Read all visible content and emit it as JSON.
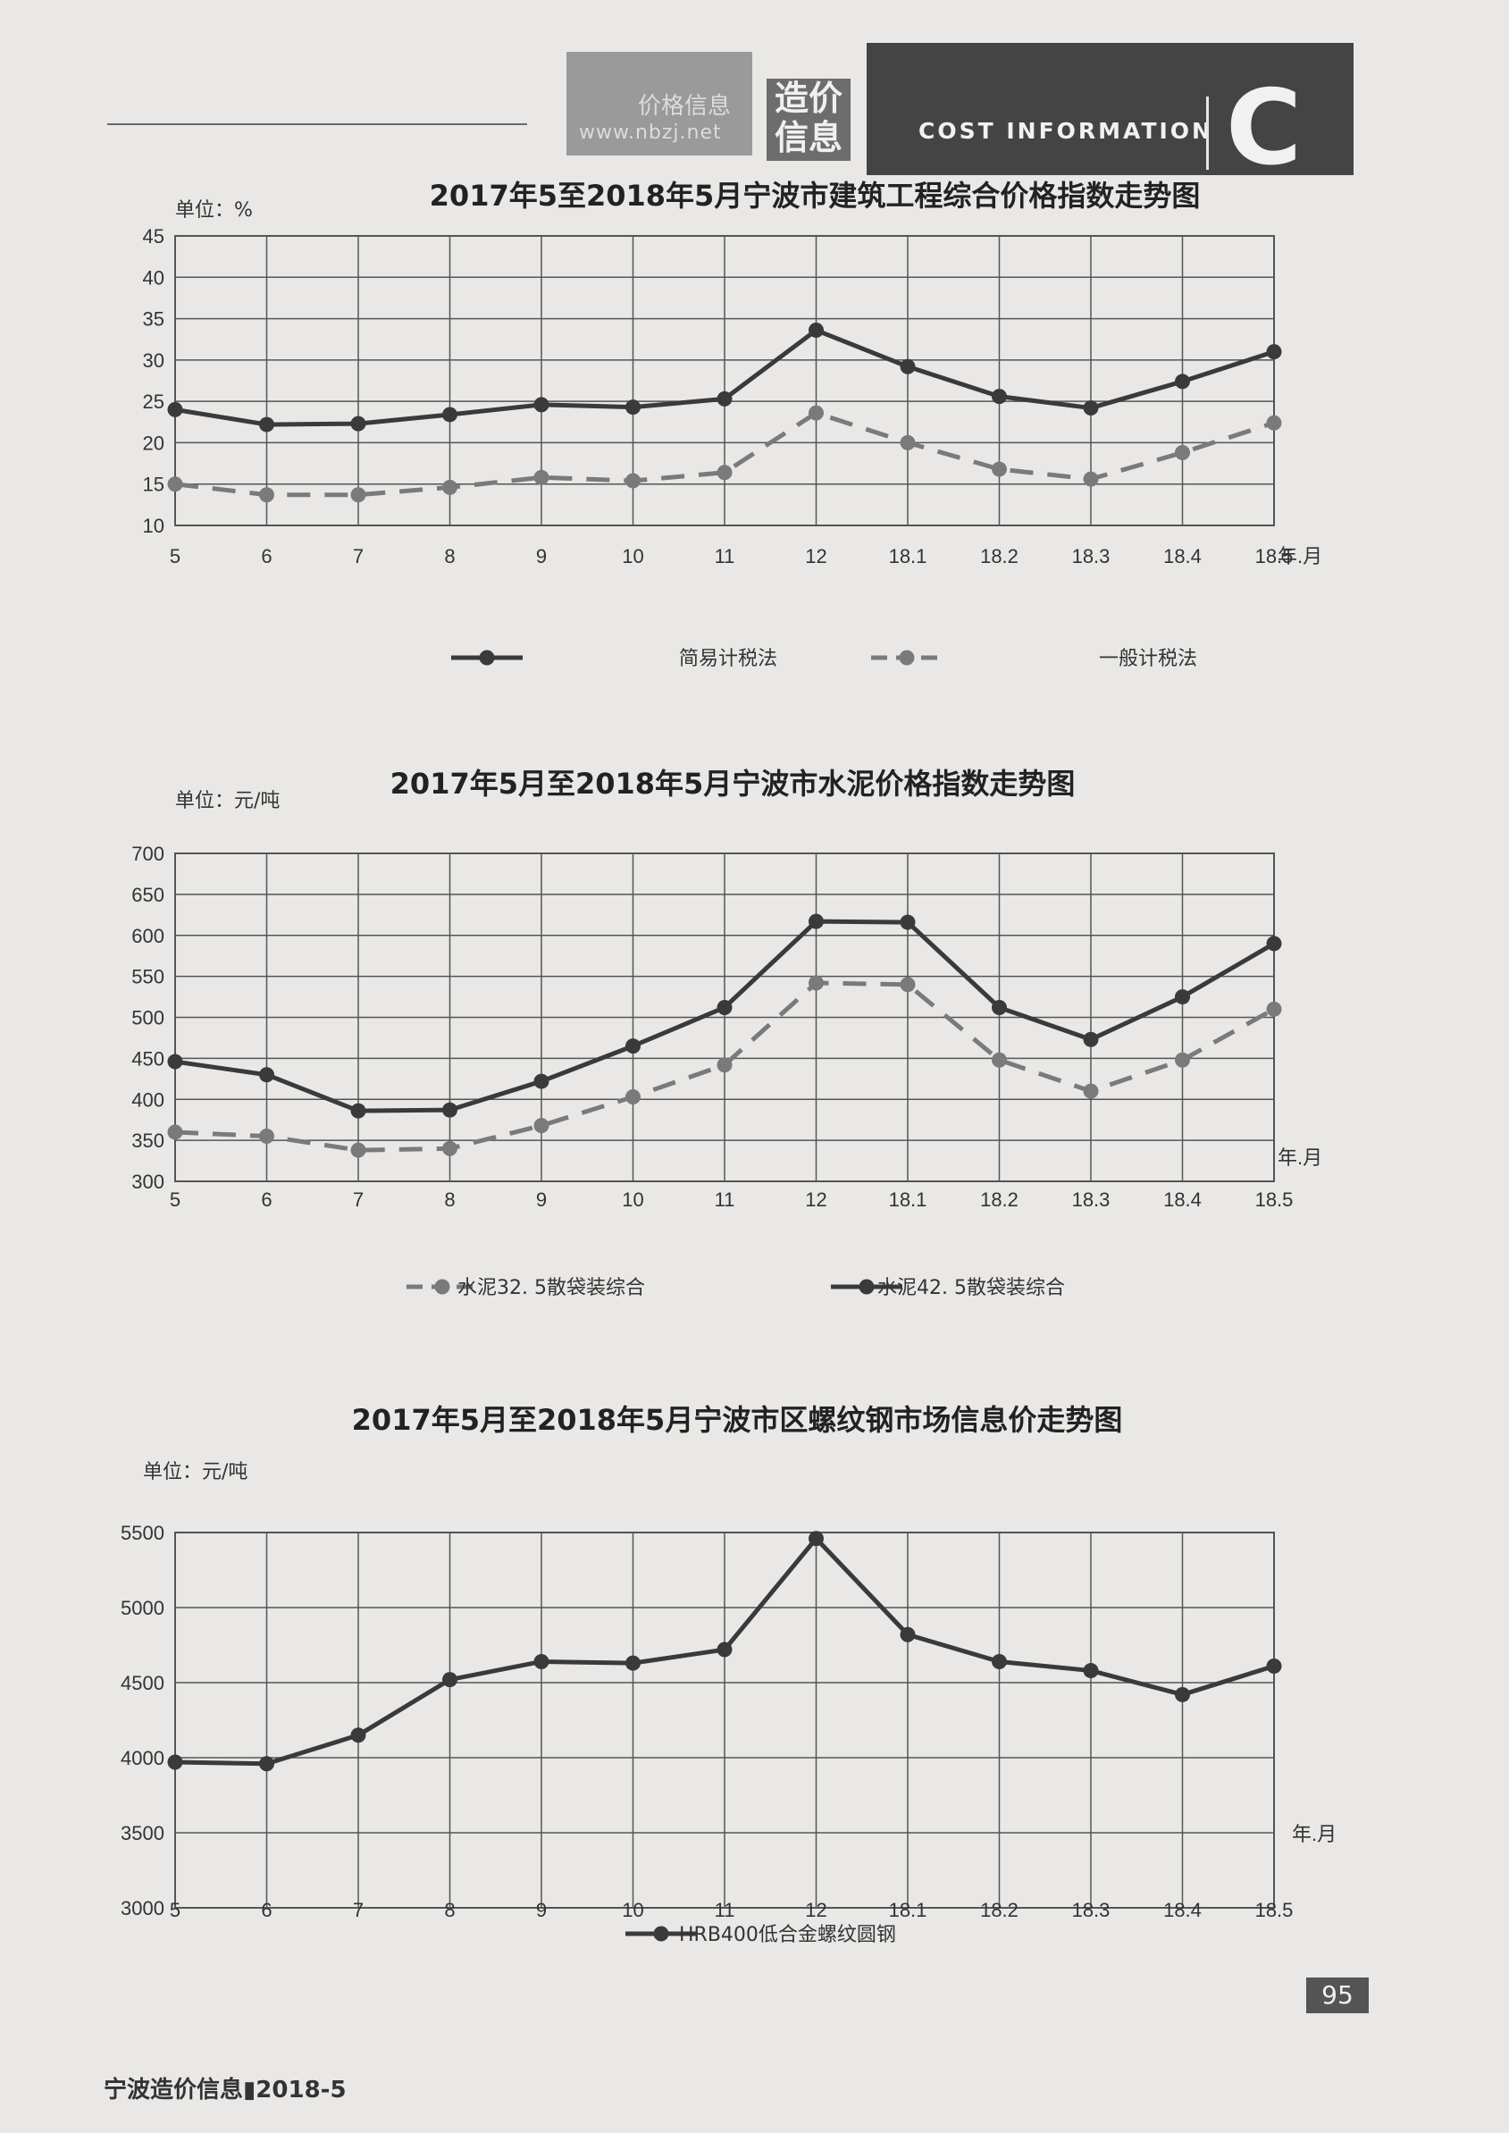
{
  "header": {
    "logo_line1": "价格信息",
    "logo_line2": "www.nbzj.net",
    "section_cn": "造价信息",
    "section_en": "COST INFORMATION",
    "section_letter": "C"
  },
  "footer": {
    "page_number": "95",
    "publication": "宁波造价信息▮2018-5"
  },
  "colors": {
    "series_dark": "#3a3a3a",
    "series_light": "#7a7a7a",
    "grid": "#555555"
  },
  "chart_data": [
    {
      "type": "line",
      "title": "2017年5至2018年5月宁波市建筑工程综合价格指数走势图",
      "unit": "单位：%",
      "xlabel": "年.月",
      "categories": [
        "5",
        "6",
        "7",
        "8",
        "9",
        "10",
        "11",
        "12",
        "18.1",
        "18.2",
        "18.3",
        "18.4",
        "18.5"
      ],
      "ylim": [
        10,
        45
      ],
      "yticks": [
        10,
        15,
        20,
        25,
        30,
        35,
        40,
        45
      ],
      "series": [
        {
          "name": "简易计税法",
          "style": "solid",
          "values": [
            24,
            22.2,
            22.3,
            23.4,
            24.6,
            24.3,
            25.3,
            33.6,
            29.2,
            25.6,
            24.2,
            27.4,
            31
          ]
        },
        {
          "name": "一般计税法",
          "style": "dashed",
          "values": [
            15,
            13.7,
            13.7,
            14.6,
            15.8,
            15.4,
            16.4,
            23.6,
            20,
            16.8,
            15.6,
            18.8,
            22.4
          ]
        }
      ]
    },
    {
      "type": "line",
      "title": "2017年5月至2018年5月宁波市水泥价格指数走势图",
      "unit": "单位：元/吨",
      "xlabel": "年.月",
      "categories": [
        "5",
        "6",
        "7",
        "8",
        "9",
        "10",
        "11",
        "12",
        "18.1",
        "18.2",
        "18.3",
        "18.4",
        "18.5"
      ],
      "ylim": [
        300,
        700
      ],
      "yticks": [
        300,
        350,
        400,
        450,
        500,
        550,
        600,
        650,
        700
      ],
      "series": [
        {
          "name": "水泥32. 5散袋装综合",
          "style": "dashed",
          "values": [
            360,
            355,
            338,
            340,
            368,
            403,
            442,
            542,
            540,
            448,
            410,
            448,
            510
          ]
        },
        {
          "name": "水泥42. 5散袋装综合",
          "style": "solid",
          "values": [
            446,
            430,
            386,
            387,
            422,
            465,
            512,
            617,
            616,
            512,
            473,
            525,
            590
          ]
        }
      ]
    },
    {
      "type": "line",
      "title": "2017年5月至2018年5月宁波市区螺纹钢市场信息价走势图",
      "unit": "单位：元/吨",
      "xlabel": "年.月",
      "categories": [
        "5",
        "6",
        "7",
        "8",
        "9",
        "10",
        "11",
        "12",
        "18.1",
        "18.2",
        "18.3",
        "18.4",
        "18.5"
      ],
      "ylim": [
        3000,
        5500
      ],
      "yticks": [
        3000,
        3500,
        4000,
        4500,
        5000,
        5500
      ],
      "series": [
        {
          "name": "HRB400低合金螺纹圆钢",
          "style": "solid",
          "values": [
            3970,
            3960,
            4150,
            4520,
            4640,
            4630,
            4720,
            5460,
            4820,
            4640,
            4580,
            4420,
            4610
          ]
        }
      ]
    }
  ]
}
